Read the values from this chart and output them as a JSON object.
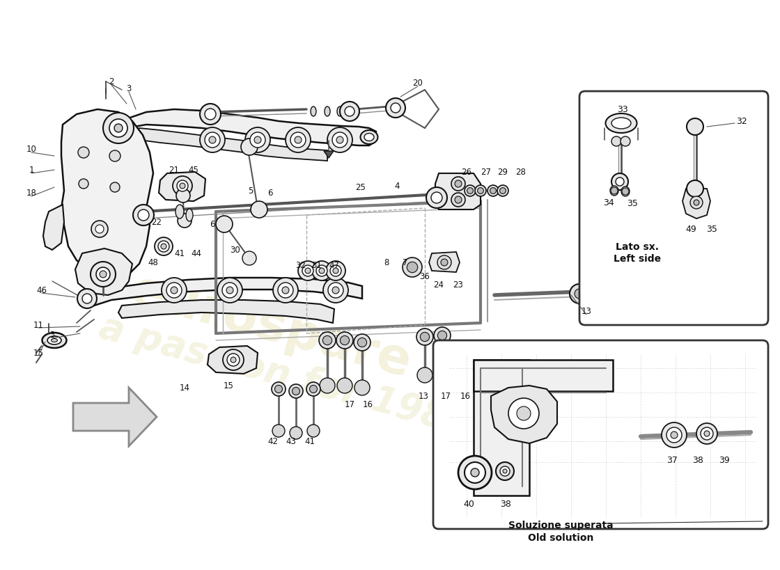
{
  "bg_color": "#ffffff",
  "line_color": "#1a1a1a",
  "watermark_text1": "eurospare",
  "watermark_text2": "a passion for 1985",
  "watermark_color": "#d4c875",
  "inset1_text1": "Lato sx.",
  "inset1_text2": "Left side",
  "inset2_text1": "Soluzione superata",
  "inset2_text2": "Old solution",
  "fig_w": 11.0,
  "fig_h": 8.0,
  "dpi": 100,
  "xlim": [
    0,
    1100
  ],
  "ylim": [
    0,
    800
  ]
}
